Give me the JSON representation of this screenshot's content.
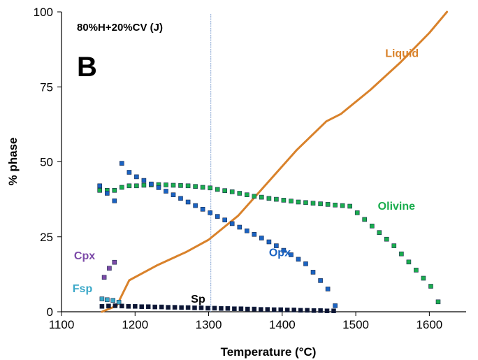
{
  "chart_data": {
    "type": "line",
    "panel_letter": "B",
    "subtitle": "80%H+20%CV (J)",
    "xlabel": "Temperature (°C)",
    "ylabel": "% phase",
    "xlim": [
      1100,
      1650
    ],
    "ylim": [
      0,
      100
    ],
    "x_ticks": [
      1100,
      1200,
      1300,
      1400,
      1500,
      1600
    ],
    "y_ticks": [
      0,
      25,
      50,
      75,
      100
    ],
    "grid": false,
    "vertical_line_x": 1303,
    "series": [
      {
        "name": "Liquid",
        "style": "line",
        "color": "#d9822b",
        "x": [
          1155,
          1175,
          1185,
          1192,
          1230,
          1270,
          1300,
          1340,
          1380,
          1420,
          1460,
          1480,
          1520,
          1560,
          1600,
          1624
        ],
        "y": [
          0,
          2,
          7,
          10.5,
          15.5,
          20,
          24,
          32,
          43,
          54,
          63.5,
          66,
          74,
          83,
          93,
          100
        ]
      },
      {
        "name": "Olivine",
        "style": "markers",
        "color": "#1aad4e",
        "x": [
          1152,
          1162,
          1172,
          1182,
          1192,
          1202,
          1212,
          1222,
          1232,
          1242,
          1252,
          1262,
          1272,
          1282,
          1292,
          1302,
          1312,
          1322,
          1332,
          1342,
          1352,
          1362,
          1372,
          1382,
          1392,
          1402,
          1412,
          1422,
          1432,
          1442,
          1452,
          1462,
          1472,
          1482,
          1492,
          1502,
          1512,
          1522,
          1532,
          1542,
          1552,
          1562,
          1572,
          1582,
          1592,
          1602,
          1612
        ],
        "y": [
          40.5,
          40.5,
          40.5,
          41.5,
          42,
          42,
          42.2,
          42.3,
          42.4,
          42.3,
          42.2,
          42.1,
          42,
          41.8,
          41.5,
          41.3,
          40.8,
          40.4,
          40,
          39.5,
          39,
          38.5,
          38.2,
          37.8,
          37.5,
          37.2,
          36.9,
          36.6,
          36.4,
          36.2,
          36,
          35.8,
          35.6,
          35.4,
          35.2,
          33,
          30.8,
          28.6,
          26.4,
          24.2,
          22,
          19.3,
          16.6,
          13.9,
          11.2,
          8.5,
          3.3
        ]
      },
      {
        "name": "Opx",
        "style": "markers",
        "color": "#1a63c2",
        "x": [
          1152,
          1162,
          1172,
          1182,
          1192,
          1202,
          1212,
          1222,
          1232,
          1242,
          1252,
          1262,
          1272,
          1282,
          1292,
          1302,
          1312,
          1322,
          1332,
          1342,
          1352,
          1362,
          1372,
          1382,
          1392,
          1402,
          1412,
          1422,
          1432,
          1442,
          1452,
          1462,
          1472
        ],
        "y": [
          42,
          39.5,
          37,
          49.5,
          46.5,
          45,
          43.8,
          42.6,
          41.4,
          40.2,
          39,
          37.8,
          36.6,
          35.4,
          34.2,
          33,
          31.8,
          30.6,
          29.4,
          28.2,
          27,
          25.8,
          24.6,
          23.3,
          22,
          20.5,
          19,
          17.5,
          16,
          13.2,
          10.4,
          7.6,
          2
        ]
      },
      {
        "name": "Cpx",
        "style": "markers",
        "color": "#7c4aa8",
        "x": [
          1158,
          1165,
          1172
        ],
        "y": [
          11.5,
          14.5,
          16.5
        ]
      },
      {
        "name": "Fsp",
        "style": "markers",
        "color": "#3aa8c8",
        "x": [
          1155,
          1162,
          1170,
          1178
        ],
        "y": [
          4.3,
          4,
          3.8,
          3.2
        ]
      },
      {
        "name": "Sp",
        "style": "markers",
        "color": "#0d1533",
        "x": [
          1155,
          1164,
          1173,
          1182,
          1191,
          1200,
          1209,
          1218,
          1227,
          1236,
          1245,
          1254,
          1263,
          1272,
          1281,
          1290,
          1299,
          1308,
          1317,
          1326,
          1335,
          1344,
          1353,
          1362,
          1371,
          1380,
          1389,
          1398,
          1407,
          1416,
          1425,
          1434,
          1443,
          1452,
          1461,
          1470
        ],
        "y": [
          1.8,
          1.9,
          2,
          1.9,
          1.8,
          1.8,
          1.7,
          1.7,
          1.6,
          1.6,
          1.5,
          1.5,
          1.4,
          1.4,
          1.3,
          1.3,
          1.2,
          1.2,
          1.1,
          1.1,
          1,
          1,
          0.9,
          0.9,
          0.8,
          0.8,
          0.7,
          0.7,
          0.6,
          0.6,
          0.5,
          0.5,
          0.4,
          0.4,
          0.3,
          0.3
        ]
      }
    ],
    "labels": [
      {
        "text": "Liquid",
        "x": 1540,
        "y": 85,
        "color": "#d9822b"
      },
      {
        "text": "Olivine",
        "x": 1530,
        "y": 34,
        "color": "#1aad4e"
      },
      {
        "text": "Opx",
        "x": 1382,
        "y": 18.5,
        "color": "#1a63c2"
      },
      {
        "text": "Cpx",
        "x": 1117,
        "y": 17.5,
        "color": "#7c4aa8"
      },
      {
        "text": "Fsp",
        "x": 1115,
        "y": 6.5,
        "color": "#3aa8c8"
      },
      {
        "text": "Sp",
        "x": 1276,
        "y": 3,
        "color": "#000000"
      }
    ]
  }
}
